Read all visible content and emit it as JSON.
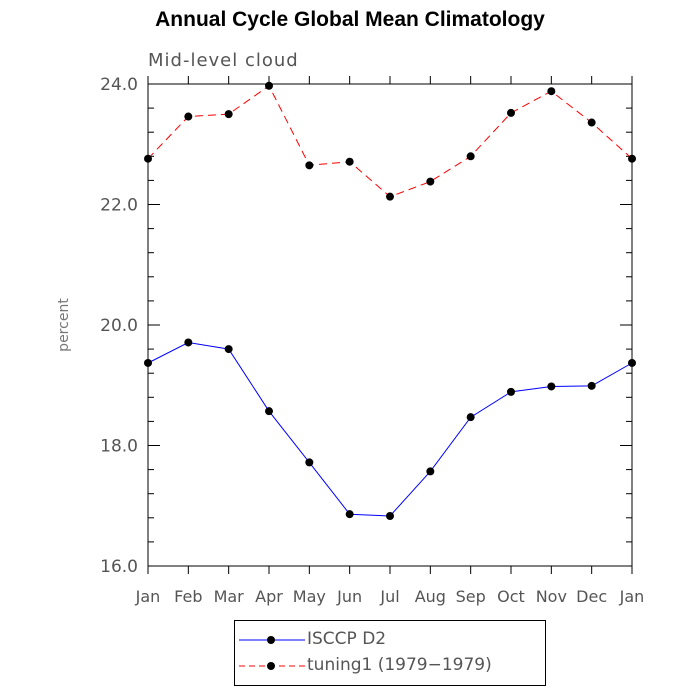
{
  "chart_data": {
    "type": "line",
    "title": "Annual Cycle Global Mean Climatology",
    "subtitle": "Mid-level cloud",
    "ylabel": "percent",
    "xlabel": "",
    "ylim": [
      16.0,
      24.0
    ],
    "yticks": [
      16.0,
      18.0,
      20.0,
      22.0,
      24.0
    ],
    "ytick_labels": [
      "16.0",
      "18.0",
      "20.0",
      "22.0",
      "24.0"
    ],
    "categories": [
      "Jan",
      "Feb",
      "Mar",
      "Apr",
      "May",
      "Jun",
      "Jul",
      "Aug",
      "Sep",
      "Oct",
      "Nov",
      "Dec",
      "Jan"
    ],
    "series": [
      {
        "name": "ISCCP D2",
        "color": "#0000ff",
        "dash": "solid",
        "values": [
          19.37,
          19.71,
          19.6,
          18.57,
          17.72,
          16.86,
          16.83,
          17.57,
          18.47,
          18.89,
          18.98,
          18.99,
          19.37
        ]
      },
      {
        "name": "tuning1 (1979−1979)",
        "color": "#ff0000",
        "dash": "dashed",
        "values": [
          22.76,
          23.46,
          23.5,
          23.97,
          22.65,
          22.71,
          22.13,
          22.38,
          22.8,
          23.52,
          23.88,
          23.36,
          22.76
        ]
      }
    ],
    "grid": false,
    "legend_position": "bottom"
  }
}
